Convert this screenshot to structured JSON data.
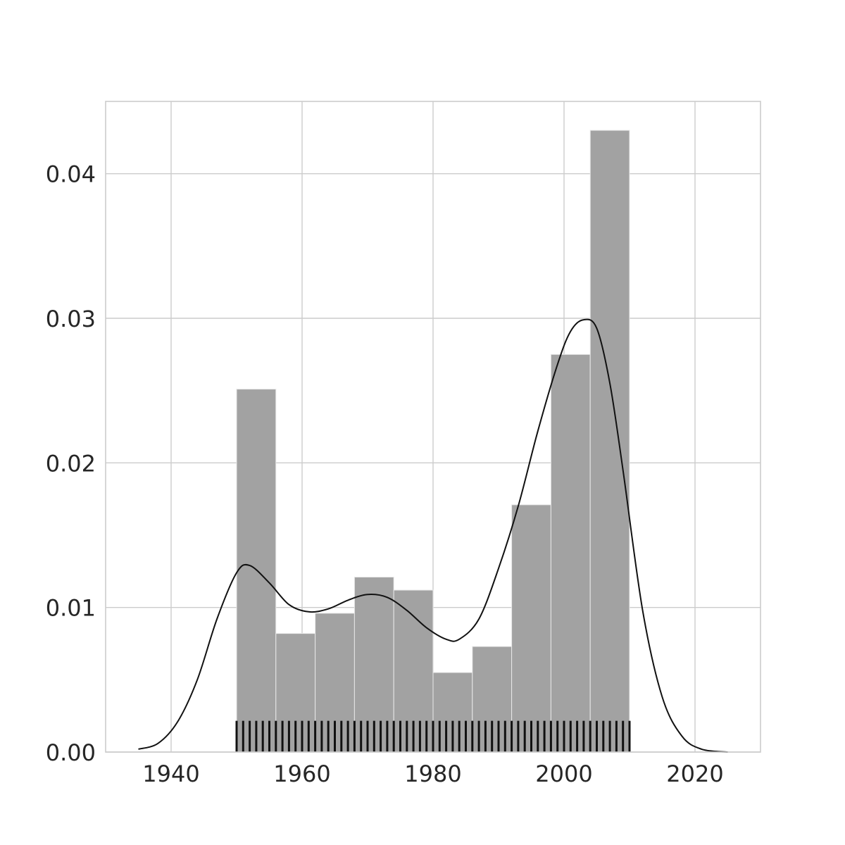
{
  "chart_data": {
    "type": "bar",
    "subtype": "histogram with kde and rug",
    "title": "",
    "xlabel": "",
    "ylabel": "",
    "xlim": [
      1930,
      2030
    ],
    "ylim": [
      0,
      0.045
    ],
    "grid": true,
    "style": "whitegrid",
    "x_ticks": [
      1940,
      1960,
      1980,
      2000,
      2020
    ],
    "x_tick_labels": [
      "1940",
      "1960",
      "1980",
      "2000",
      "2020"
    ],
    "y_ticks": [
      0.0,
      0.01,
      0.02,
      0.03,
      0.04
    ],
    "y_tick_labels": [
      "0.00",
      "0.01",
      "0.02",
      "0.03",
      "0.04"
    ],
    "histogram": {
      "bin_edges": [
        1950,
        1956,
        1962,
        1968,
        1974,
        1980,
        1986,
        1992,
        1998,
        2004,
        2010
      ],
      "density": [
        0.0251,
        0.0082,
        0.0096,
        0.0121,
        0.0112,
        0.0055,
        0.0073,
        0.0171,
        0.0275,
        0.043
      ],
      "color": "#a2a2a2"
    },
    "kde": {
      "x": [
        1935,
        1938,
        1941,
        1944,
        1947,
        1950,
        1952,
        1955,
        1958,
        1961,
        1964,
        1967,
        1970,
        1973,
        1976,
        1979,
        1982,
        1984,
        1987,
        1990,
        1993,
        1996,
        1999,
        2001,
        2003,
        2005,
        2007,
        2009,
        2012,
        2015,
        2018,
        2021,
        2025
      ],
      "y": [
        0.0002,
        0.0006,
        0.0021,
        0.005,
        0.0092,
        0.0124,
        0.0129,
        0.0117,
        0.0102,
        0.0097,
        0.0099,
        0.0105,
        0.0109,
        0.0107,
        0.0098,
        0.0086,
        0.0078,
        0.0078,
        0.0092,
        0.0127,
        0.017,
        0.0222,
        0.0268,
        0.0291,
        0.0299,
        0.0293,
        0.0255,
        0.0195,
        0.0098,
        0.0038,
        0.0011,
        0.0002,
        0.0
      ],
      "color": "#111111"
    },
    "rug": {
      "start": 1950,
      "end": 2010,
      "step": 1,
      "height_fraction": 0.048,
      "color": "#111111"
    }
  }
}
